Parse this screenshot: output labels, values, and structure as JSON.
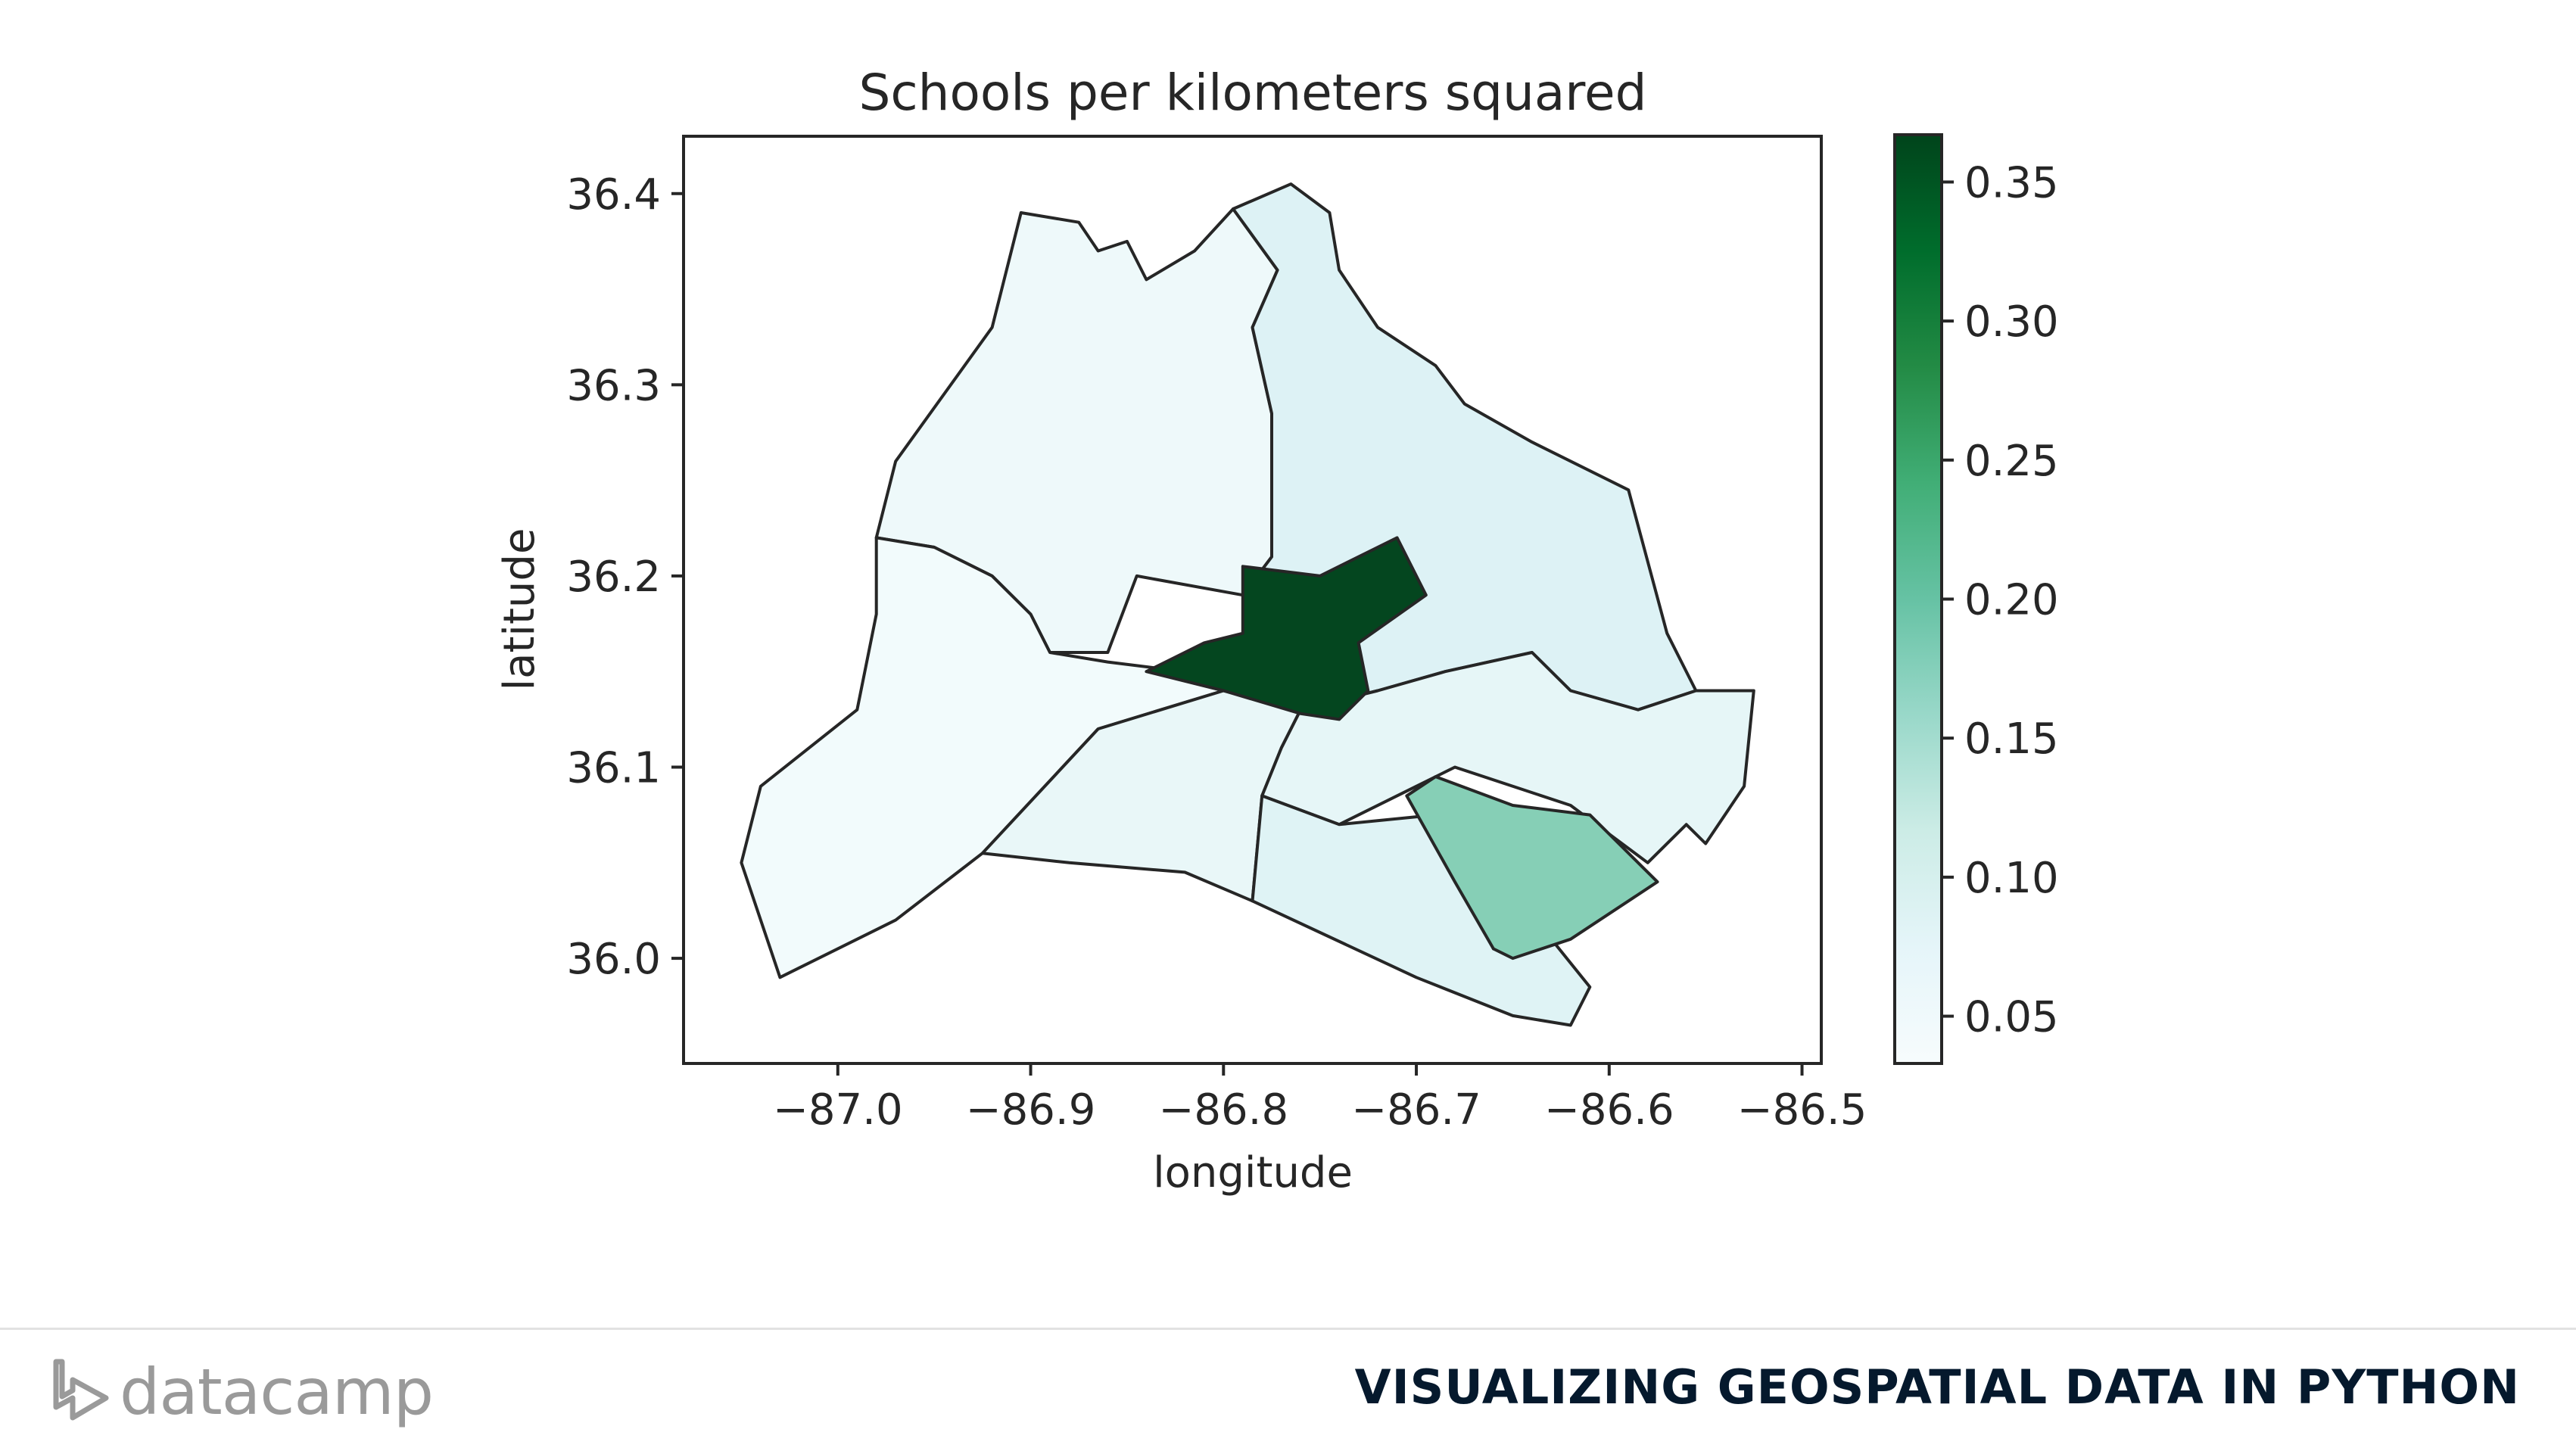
{
  "chart_data": {
    "type": "choropleth",
    "title": "Schools per kilometers squared",
    "xlabel": "longitude",
    "ylabel": "latitude",
    "xlim": [
      -87.08,
      -86.49
    ],
    "ylim": [
      35.945,
      36.43
    ],
    "xticks": [
      "−87.0",
      "−86.9",
      "−86.8",
      "−86.7",
      "−86.6",
      "−86.5"
    ],
    "xtick_values": [
      -87.0,
      -86.9,
      -86.8,
      -86.7,
      -86.6,
      -86.5
    ],
    "yticks": [
      "36.0",
      "36.1",
      "36.2",
      "36.3",
      "36.4"
    ],
    "ytick_values": [
      36.0,
      36.1,
      36.2,
      36.3,
      36.4
    ],
    "colormap": "BuGn",
    "colorbar": {
      "range": [
        0.033,
        0.367
      ],
      "ticks": [
        "0.05",
        "0.10",
        "0.15",
        "0.20",
        "0.25",
        "0.30",
        "0.35"
      ],
      "tick_values": [
        0.05,
        0.1,
        0.15,
        0.2,
        0.25,
        0.3,
        0.35
      ],
      "colors": [
        "#f7fcfd",
        "#e5f5f9",
        "#ccece6",
        "#99d8c9",
        "#66c2a4",
        "#41ae76",
        "#238b45",
        "#006d2c",
        "#00441b"
      ]
    },
    "regions": [
      {
        "id": "north",
        "value": 0.05,
        "color": "#eef9fa",
        "boundary": [
          [
            -86.98,
            36.22
          ],
          [
            -86.97,
            36.26
          ],
          [
            -86.92,
            36.33
          ],
          [
            -86.905,
            36.39
          ],
          [
            -86.875,
            36.385
          ],
          [
            -86.865,
            36.37
          ],
          [
            -86.85,
            36.375
          ],
          [
            -86.84,
            36.355
          ],
          [
            -86.815,
            36.37
          ],
          [
            -86.795,
            36.392
          ],
          [
            -86.772,
            36.36
          ],
          [
            -86.785,
            36.33
          ],
          [
            -86.775,
            36.285
          ],
          [
            -86.775,
            36.21
          ],
          [
            -86.79,
            36.19
          ],
          [
            -86.845,
            36.2
          ],
          [
            -86.86,
            36.16
          ],
          [
            -86.89,
            36.16
          ],
          [
            -86.9,
            36.18
          ],
          [
            -86.92,
            36.2
          ],
          [
            -86.95,
            36.215
          ]
        ]
      },
      {
        "id": "northeast",
        "value": 0.09,
        "color": "#ddf2f5",
        "boundary": [
          [
            -86.795,
            36.392
          ],
          [
            -86.765,
            36.405
          ],
          [
            -86.745,
            36.39
          ],
          [
            -86.74,
            36.36
          ],
          [
            -86.72,
            36.33
          ],
          [
            -86.69,
            36.31
          ],
          [
            -86.675,
            36.29
          ],
          [
            -86.64,
            36.27
          ],
          [
            -86.59,
            36.245
          ],
          [
            -86.57,
            36.17
          ],
          [
            -86.555,
            36.14
          ],
          [
            -86.585,
            36.13
          ],
          [
            -86.62,
            36.14
          ],
          [
            -86.64,
            36.16
          ],
          [
            -86.685,
            36.15
          ],
          [
            -86.72,
            36.14
          ],
          [
            -86.76,
            36.13
          ],
          [
            -86.77,
            36.17
          ],
          [
            -86.79,
            36.19
          ],
          [
            -86.775,
            36.21
          ],
          [
            -86.775,
            36.285
          ],
          [
            -86.785,
            36.33
          ],
          [
            -86.772,
            36.36
          ]
        ]
      },
      {
        "id": "west",
        "value": 0.045,
        "color": "#f2fbfc",
        "boundary": [
          [
            -86.98,
            36.22
          ],
          [
            -86.95,
            36.215
          ],
          [
            -86.92,
            36.2
          ],
          [
            -86.9,
            36.18
          ],
          [
            -86.89,
            36.16
          ],
          [
            -86.86,
            36.155
          ],
          [
            -86.82,
            36.15
          ],
          [
            -86.8,
            36.14
          ],
          [
            -86.865,
            36.12
          ],
          [
            -86.925,
            36.055
          ],
          [
            -86.97,
            36.02
          ],
          [
            -87.02,
            35.995
          ],
          [
            -87.03,
            35.99
          ],
          [
            -87.05,
            36.05
          ],
          [
            -87.04,
            36.09
          ],
          [
            -86.99,
            36.13
          ],
          [
            -86.98,
            36.18
          ]
        ]
      },
      {
        "id": "southwest",
        "value": 0.06,
        "color": "#e9f7f8",
        "boundary": [
          [
            -86.925,
            36.055
          ],
          [
            -86.865,
            36.12
          ],
          [
            -86.8,
            36.14
          ],
          [
            -86.76,
            36.13
          ],
          [
            -86.77,
            36.11
          ],
          [
            -86.78,
            36.085
          ],
          [
            -86.785,
            36.03
          ],
          [
            -86.82,
            36.045
          ],
          [
            -86.88,
            36.05
          ]
        ]
      },
      {
        "id": "southeast",
        "value": 0.065,
        "color": "#e6f6f7",
        "boundary": [
          [
            -86.76,
            36.13
          ],
          [
            -86.72,
            36.14
          ],
          [
            -86.685,
            36.15
          ],
          [
            -86.64,
            36.16
          ],
          [
            -86.62,
            36.14
          ],
          [
            -86.585,
            36.13
          ],
          [
            -86.555,
            36.14
          ],
          [
            -86.525,
            36.14
          ],
          [
            -86.53,
            36.09
          ],
          [
            -86.55,
            36.06
          ],
          [
            -86.56,
            36.07
          ],
          [
            -86.58,
            36.05
          ],
          [
            -86.62,
            36.08
          ],
          [
            -86.68,
            36.1
          ],
          [
            -86.7,
            36.09
          ],
          [
            -86.74,
            36.07
          ],
          [
            -86.78,
            36.085
          ],
          [
            -86.77,
            36.11
          ]
        ]
      },
      {
        "id": "south",
        "value": 0.08,
        "color": "#dff3f5",
        "boundary": [
          [
            -86.785,
            36.03
          ],
          [
            -86.78,
            36.085
          ],
          [
            -86.74,
            36.07
          ],
          [
            -86.69,
            36.075
          ],
          [
            -86.67,
            36.04
          ],
          [
            -86.66,
            36.005
          ],
          [
            -86.63,
            36.01
          ],
          [
            -86.61,
            35.985
          ],
          [
            -86.62,
            35.965
          ],
          [
            -86.65,
            35.97
          ],
          [
            -86.7,
            35.99
          ]
        ]
      },
      {
        "id": "brentwood",
        "value": 0.18,
        "color": "#86cfb6",
        "boundary": [
          [
            -86.705,
            36.085
          ],
          [
            -86.69,
            36.095
          ],
          [
            -86.65,
            36.08
          ],
          [
            -86.61,
            36.075
          ],
          [
            -86.575,
            36.04
          ],
          [
            -86.59,
            36.03
          ],
          [
            -86.62,
            36.01
          ],
          [
            -86.65,
            36.0
          ],
          [
            -86.66,
            36.005
          ],
          [
            -86.68,
            36.04
          ]
        ]
      },
      {
        "id": "downtown",
        "value": 0.36,
        "color": "#04461f",
        "boundary": [
          [
            -86.84,
            36.15
          ],
          [
            -86.81,
            36.165
          ],
          [
            -86.79,
            36.17
          ],
          [
            -86.79,
            36.205
          ],
          [
            -86.75,
            36.2
          ],
          [
            -86.71,
            36.22
          ],
          [
            -86.695,
            36.19
          ],
          [
            -86.73,
            36.165
          ],
          [
            -86.725,
            36.14
          ],
          [
            -86.74,
            36.125
          ],
          [
            -86.76,
            36.128
          ],
          [
            -86.8,
            36.14
          ]
        ]
      }
    ]
  },
  "footer": {
    "logo_text": "datacamp",
    "course_title": "VISUALIZING GEOSPATIAL DATA IN PYTHON"
  }
}
